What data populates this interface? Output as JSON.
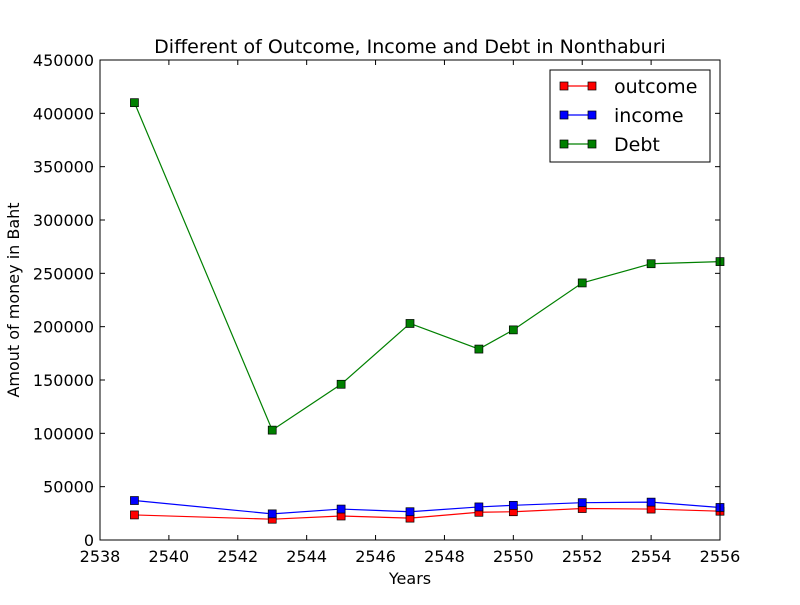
{
  "chart_data": {
    "type": "line",
    "title": "Different of Outcome, Income and Debt in Nonthaburi",
    "xlabel": "Years",
    "ylabel": "Amout of money in Baht",
    "xlim": [
      2538,
      2556
    ],
    "ylim": [
      0,
      450000
    ],
    "x_ticks": [
      2538,
      2540,
      2542,
      2544,
      2546,
      2548,
      2550,
      2552,
      2554,
      2556
    ],
    "y_ticks": [
      0,
      50000,
      100000,
      150000,
      200000,
      250000,
      300000,
      350000,
      400000,
      450000
    ],
    "x": [
      2539,
      2543,
      2545,
      2547,
      2549,
      2550,
      2552,
      2554,
      2556
    ],
    "series": [
      {
        "name": "outcome",
        "color": "#ff0000",
        "values": [
          23500,
          19500,
          22500,
          20500,
          26000,
          26500,
          29500,
          29000,
          27000
        ]
      },
      {
        "name": "income",
        "color": "#0000ff",
        "values": [
          37000,
          24500,
          29000,
          26500,
          31000,
          32500,
          35000,
          35500,
          30500
        ]
      },
      {
        "name": "Debt",
        "color": "#008000",
        "values": [
          410000,
          103000,
          146000,
          203000,
          179000,
          197000,
          241000,
          259000,
          261000
        ]
      }
    ],
    "legend_position": "top-right",
    "grid": false
  }
}
